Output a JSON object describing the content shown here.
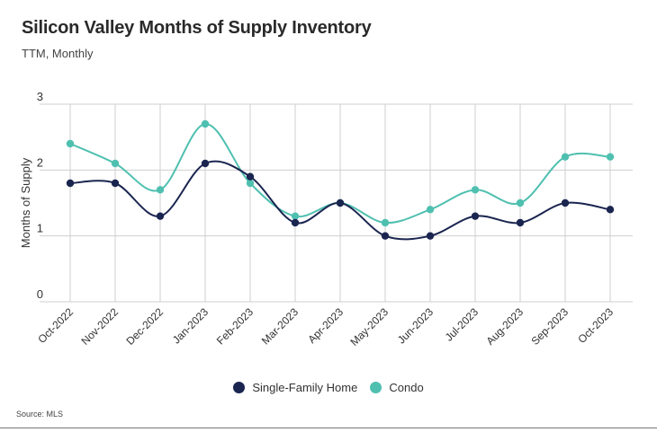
{
  "title": "Silicon Valley Months of Supply Inventory",
  "subtitle": "TTM, Monthly",
  "source": "Source: MLS",
  "colors": {
    "single_family": "#1a2550",
    "condo": "#4fc0b0",
    "grid": "#cfcfcf"
  },
  "chart_data": {
    "type": "line",
    "title": "Silicon Valley Months of Supply Inventory",
    "subtitle": "TTM, Monthly",
    "xlabel": "",
    "ylabel": "Months of Supply",
    "ylim": [
      0,
      3
    ],
    "yticks": [
      "0",
      "1",
      "2",
      "3"
    ],
    "grid": true,
    "legend": "bottom-center",
    "categories": [
      "Oct-2022",
      "Nov-2022",
      "Dec-2022",
      "Jan-2023",
      "Feb-2023",
      "Mar-2023",
      "Apr-2023",
      "May-2023",
      "Jun-2023",
      "Jul-2023",
      "Aug-2023",
      "Sep-2023",
      "Oct-2023"
    ],
    "series": [
      {
        "name": "Single-Family Home",
        "values": [
          1.8,
          1.8,
          1.3,
          2.1,
          1.9,
          1.2,
          1.5,
          1.0,
          1.0,
          1.3,
          1.2,
          1.5,
          1.4
        ]
      },
      {
        "name": "Condo",
        "values": [
          2.4,
          2.1,
          1.7,
          2.7,
          1.8,
          1.3,
          1.5,
          1.2,
          1.4,
          1.7,
          1.5,
          2.2,
          2.2
        ]
      }
    ]
  }
}
